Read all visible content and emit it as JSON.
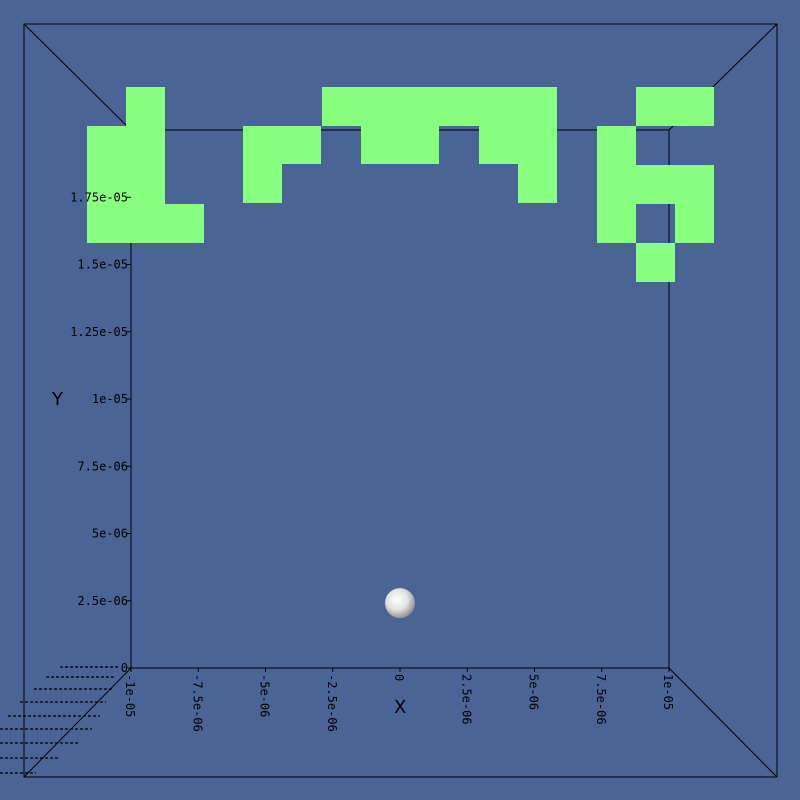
{
  "scene": {
    "background_color": "#4a6496",
    "block_color": "#88ff7f",
    "frame_color": "#000000",
    "ball_color": "#e6e6e6"
  },
  "axes": {
    "x_title": "X",
    "y_title": "Y",
    "x_ticks": [
      {
        "value": -1e-05,
        "label": "-1e-05"
      },
      {
        "value": -7.5e-06,
        "label": "-7.5e-06"
      },
      {
        "value": -5e-06,
        "label": "-5e-06"
      },
      {
        "value": -2.5e-06,
        "label": "-2.5e-06"
      },
      {
        "value": 0,
        "label": "0"
      },
      {
        "value": 2.5e-06,
        "label": "2.5e-06"
      },
      {
        "value": 5e-06,
        "label": "5e-06"
      },
      {
        "value": 7.5e-06,
        "label": "7.5e-06"
      },
      {
        "value": 1e-05,
        "label": "1e-05"
      }
    ],
    "y_ticks": [
      {
        "value": 0,
        "label": "0"
      },
      {
        "value": 2.5e-06,
        "label": "2.5e-06"
      },
      {
        "value": 5e-06,
        "label": "5e-06"
      },
      {
        "value": 7.5e-06,
        "label": "7.5e-06"
      },
      {
        "value": 1e-05,
        "label": "1e-05"
      },
      {
        "value": 1.25e-05,
        "label": "1.25e-05"
      },
      {
        "value": 1.5e-05,
        "label": "1.5e-05"
      },
      {
        "value": 1.75e-05,
        "label": "1.75e-05"
      }
    ],
    "x_range": [
      -1e-05,
      1e-05
    ],
    "y_range": [
      0,
      2e-05
    ]
  },
  "ball": {
    "x": 0,
    "y": 3.9e-06
  }
}
